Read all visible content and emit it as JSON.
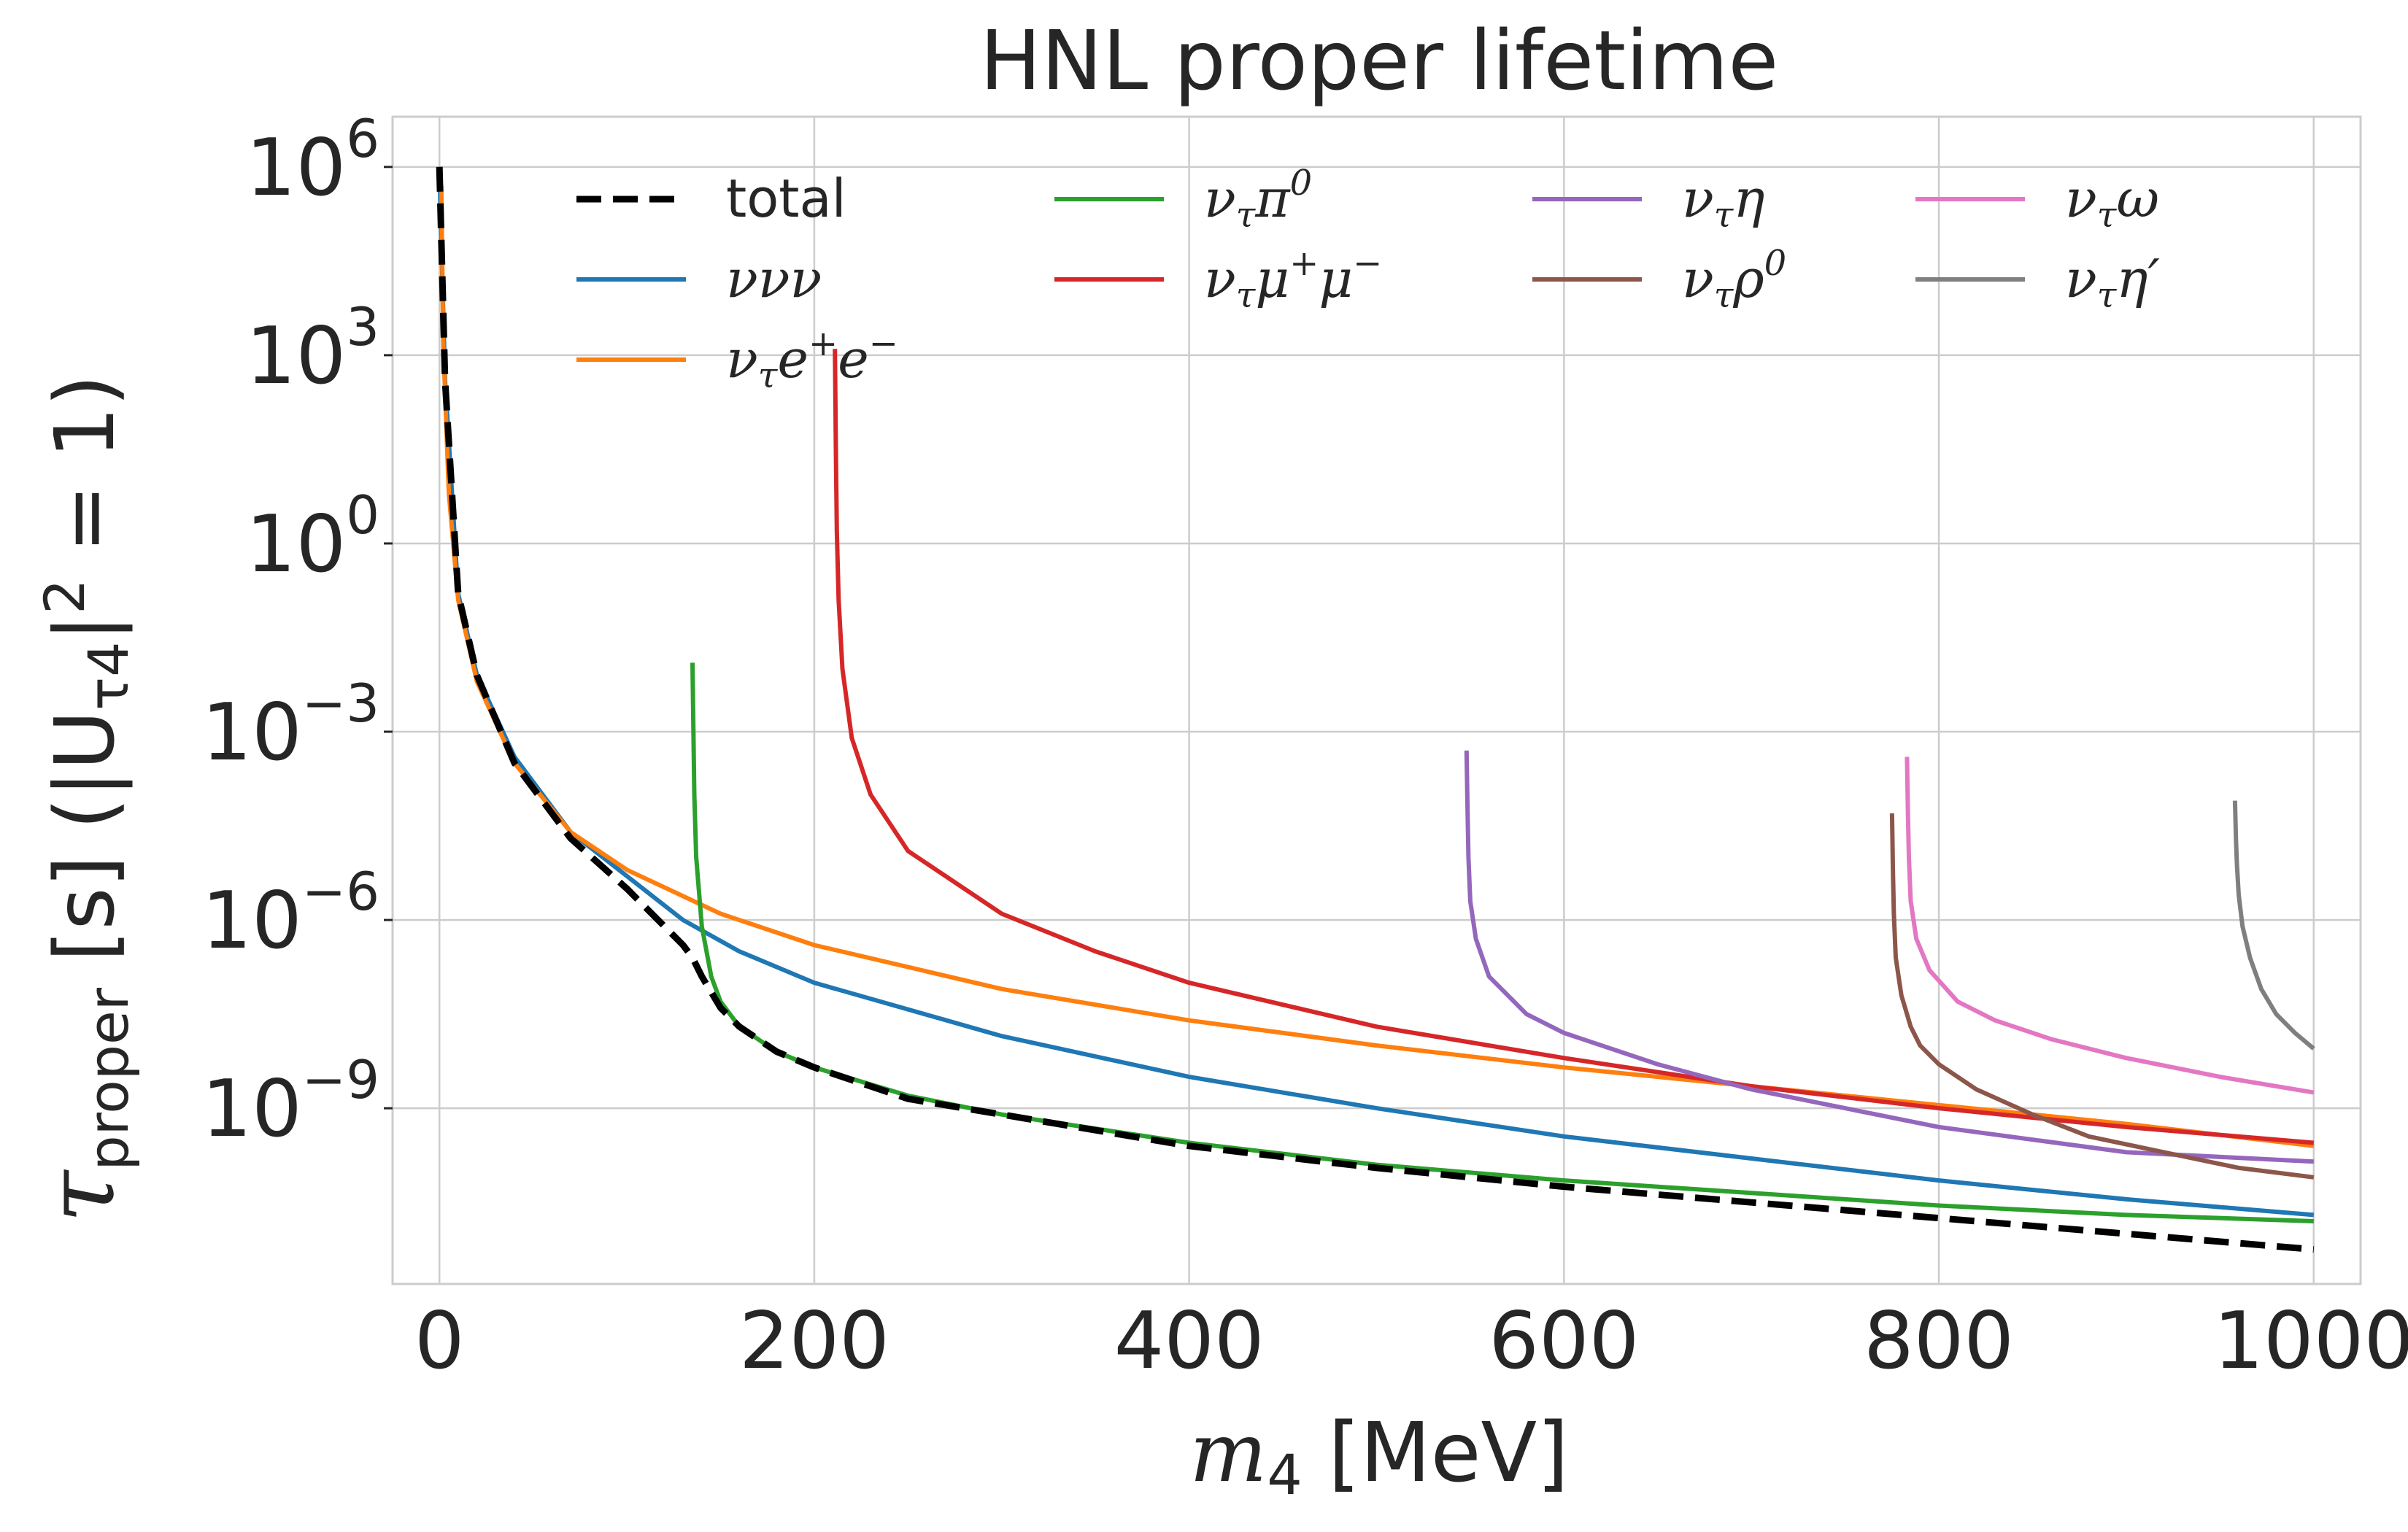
{
  "chart_data": {
    "type": "line",
    "title": "HNL proper lifetime",
    "xlabel_main": "m",
    "xlabel_sub": "4",
    "xlabel_unit": " [MeV]",
    "ylabel_main": "τ",
    "ylabel_sub": "proper",
    "ylabel_rest": " [s] (|U",
    "ylabel_sub2": "τ4",
    "ylabel_close": "|",
    "ylabel_sup": "2",
    "ylabel_end": " = 1)",
    "xlim": [
      -25,
      1025
    ],
    "ylim_log10": [
      -11.8,
      6.8
    ],
    "y_scale": "log",
    "grid": true,
    "legend_placement": "top",
    "x_ticks": [
      0,
      200,
      400,
      600,
      800,
      1000
    ],
    "x_tick_labels": [
      "0",
      "200",
      "400",
      "600",
      "800",
      "1000"
    ],
    "y_ticks_log10": [
      6,
      3,
      0,
      -3,
      -6,
      -9
    ],
    "y_tick_labels": [
      {
        "base": "10",
        "exp": "6"
      },
      {
        "base": "10",
        "exp": "3"
      },
      {
        "base": "10",
        "exp": "0"
      },
      {
        "base": "10",
        "exp": "−3"
      },
      {
        "base": "10",
        "exp": "−6"
      },
      {
        "base": "10",
        "exp": "−9"
      }
    ],
    "series": [
      {
        "name": "total",
        "color": "#000000",
        "dash": true,
        "x": [
          0,
          3,
          10,
          20,
          40,
          70,
          100,
          130,
          135,
          140,
          150,
          160,
          180,
          200,
          250,
          300,
          400,
          500,
          600,
          700,
          800,
          900,
          1000
        ],
        "log10y": [
          6.0,
          2.6,
          -0.8,
          -2.1,
          -3.5,
          -4.7,
          -5.5,
          -6.4,
          -6.6,
          -6.9,
          -7.4,
          -7.7,
          -8.1,
          -8.35,
          -8.85,
          -9.1,
          -9.6,
          -9.95,
          -10.25,
          -10.5,
          -10.75,
          -11.0,
          -11.25
        ]
      },
      {
        "name": "ννν",
        "color": "#1f77b4",
        "x": [
          0,
          3,
          10,
          20,
          40,
          70,
          100,
          130,
          160,
          200,
          300,
          400,
          500,
          600,
          700,
          800,
          900,
          1000
        ],
        "log10y": [
          6.0,
          2.6,
          -0.8,
          -2.1,
          -3.4,
          -4.6,
          -5.3,
          -6.0,
          -6.5,
          -7.0,
          -7.85,
          -8.5,
          -9.0,
          -9.45,
          -9.8,
          -10.15,
          -10.45,
          -10.7
        ]
      },
      {
        "name": "ν_τ e^+ e^-",
        "color": "#ff7f0e",
        "x": [
          1,
          2,
          5,
          10,
          20,
          40,
          70,
          100,
          150,
          200,
          300,
          400,
          500,
          600,
          700,
          800,
          900,
          1000
        ],
        "log10y": [
          5.7,
          3.2,
          0.8,
          -0.9,
          -2.2,
          -3.5,
          -4.6,
          -5.2,
          -5.9,
          -6.4,
          -7.1,
          -7.6,
          -8.0,
          -8.35,
          -8.65,
          -8.95,
          -9.25,
          -9.6
        ]
      },
      {
        "name": "ν_τ π^0",
        "color": "#2ca02c",
        "x": [
          135,
          135.5,
          136,
          137,
          140,
          145,
          150,
          160,
          180,
          200,
          250,
          300,
          400,
          500,
          600,
          700,
          800,
          900,
          1000
        ],
        "log10y": [
          -1.9,
          -3.0,
          -4.0,
          -5.0,
          -6.1,
          -6.9,
          -7.3,
          -7.7,
          -8.1,
          -8.35,
          -8.8,
          -9.1,
          -9.55,
          -9.9,
          -10.15,
          -10.35,
          -10.55,
          -10.7,
          -10.8
        ]
      },
      {
        "name": "ν_τ μ^+ μ^-",
        "color": "#d62728",
        "x": [
          211,
          211.5,
          212,
          213,
          215,
          220,
          230,
          250,
          300,
          350,
          400,
          500,
          600,
          700,
          800,
          900,
          1000
        ],
        "log10y": [
          3.1,
          1.5,
          0.2,
          -0.9,
          -2.0,
          -3.1,
          -4.0,
          -4.9,
          -5.9,
          -6.5,
          -7.0,
          -7.7,
          -8.2,
          -8.65,
          -9.0,
          -9.3,
          -9.55
        ]
      },
      {
        "name": "ν_τ η",
        "color": "#9467bd",
        "x": [
          548,
          548.5,
          549,
          550,
          553,
          560,
          580,
          600,
          650,
          700,
          750,
          800,
          850,
          900,
          1000
        ],
        "log10y": [
          -3.3,
          -4.2,
          -5.0,
          -5.7,
          -6.3,
          -6.9,
          -7.5,
          -7.8,
          -8.3,
          -8.7,
          -9.0,
          -9.3,
          -9.5,
          -9.7,
          -9.85
        ]
      },
      {
        "name": "ν_τ ω",
        "color": "#e377c2",
        "x": [
          783,
          783.5,
          784,
          785,
          788,
          795,
          810,
          830,
          860,
          900,
          950,
          1000
        ],
        "log10y": [
          -3.4,
          -4.3,
          -5.0,
          -5.7,
          -6.3,
          -6.8,
          -7.3,
          -7.6,
          -7.9,
          -8.2,
          -8.5,
          -8.75
        ]
      },
      {
        "name": "ν_τ ρ^0",
        "color": "#8c564b",
        "x": [
          775,
          775.5,
          776,
          777,
          780,
          785,
          790,
          800,
          820,
          850,
          880,
          920,
          960,
          1000
        ],
        "log10y": [
          -4.3,
          -5.2,
          -5.9,
          -6.6,
          -7.2,
          -7.7,
          -8.0,
          -8.3,
          -8.7,
          -9.1,
          -9.45,
          -9.7,
          -9.95,
          -10.1
        ]
      },
      {
        "name": "ν_τ η′",
        "color": "#7f7f7f",
        "x": [
          958,
          958.5,
          959,
          960,
          962,
          966,
          972,
          980,
          990,
          1000
        ],
        "log10y": [
          -4.1,
          -4.7,
          -5.1,
          -5.6,
          -6.1,
          -6.6,
          -7.1,
          -7.5,
          -7.8,
          -8.05
        ]
      }
    ]
  },
  "legend": [
    {
      "parts": [
        {
          "t": "total",
          "plain": true
        }
      ]
    },
    {
      "parts": [
        {
          "t": "ν"
        },
        {
          "t": "τ",
          "sub": true
        },
        {
          "t": "π"
        },
        {
          "t": "0",
          "sup": true
        }
      ]
    },
    {
      "parts": [
        {
          "t": "ν"
        },
        {
          "t": "τ",
          "sub": true
        },
        {
          "t": "η"
        }
      ]
    },
    {
      "parts": [
        {
          "t": "ν"
        },
        {
          "t": "τ",
          "sub": true
        },
        {
          "t": "ω"
        }
      ]
    },
    {
      "parts": [
        {
          "t": "ννν"
        }
      ]
    },
    {
      "parts": [
        {
          "t": "ν"
        },
        {
          "t": "τ",
          "sub": true
        },
        {
          "t": "μ"
        },
        {
          "t": "+",
          "sup": true
        },
        {
          "t": "μ"
        },
        {
          "t": "−",
          "sup": true
        }
      ]
    },
    {
      "parts": [
        {
          "t": "ν"
        },
        {
          "t": "τ",
          "sub": true
        },
        {
          "t": "ρ"
        },
        {
          "t": "0",
          "sup": true
        }
      ]
    },
    {
      "parts": [
        {
          "t": "ν"
        },
        {
          "t": "τ",
          "sub": true
        },
        {
          "t": "η′"
        }
      ]
    },
    {
      "parts": [
        {
          "t": "ν"
        },
        {
          "t": "τ",
          "sub": true
        },
        {
          "t": "e"
        },
        {
          "t": "+",
          "sup": true
        },
        {
          "t": "e"
        },
        {
          "t": "−",
          "sup": true
        }
      ]
    }
  ]
}
